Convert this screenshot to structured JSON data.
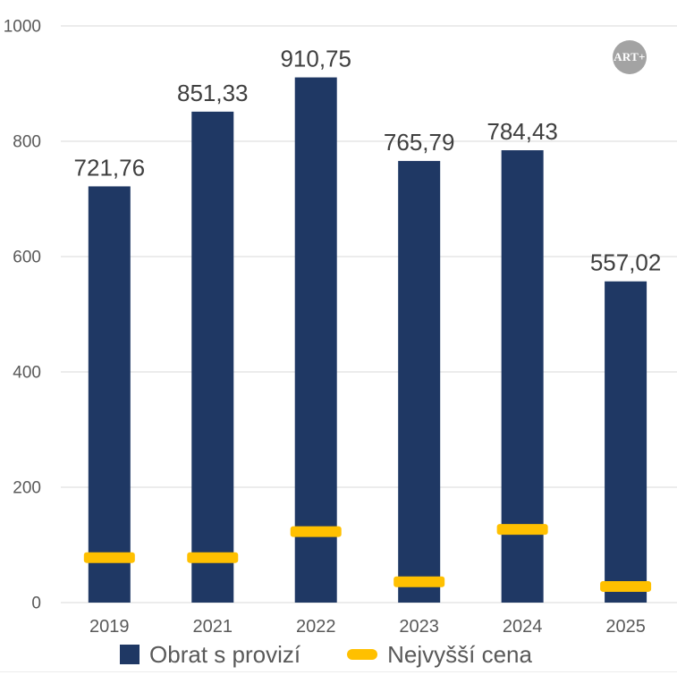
{
  "logo": {
    "text": "ART+"
  },
  "colors": {
    "bar": "#1f3864",
    "marker": "#ffc000",
    "grid": "#d9d9d9",
    "axis_label": "#595959",
    "data_label": "#3f3f3f",
    "logo_bg": "#a3a3a3",
    "logo_text": "#ffffff"
  },
  "legend": {
    "items": [
      {
        "label": "Obrat s provizí",
        "swatch": "square"
      },
      {
        "label": "Nejvyšší cena",
        "swatch": "dash"
      }
    ]
  },
  "chart_data": {
    "type": "bar",
    "categories": [
      "2019",
      "2021",
      "2022",
      "2023",
      "2024",
      "2025"
    ],
    "series": [
      {
        "name": "Obrat s provizí",
        "type": "bar",
        "color": "#1f3864",
        "values": [
          721.76,
          851.33,
          910.75,
          765.79,
          784.43,
          557.02
        ],
        "data_labels": [
          "721,76",
          "851,33",
          "910,75",
          "765,79",
          "784,43",
          "557,02"
        ]
      },
      {
        "name": "Nejvyšší cena",
        "type": "dash-marker",
        "color": "#ffc000",
        "values": [
          78,
          78,
          123,
          36,
          127,
          28
        ]
      }
    ],
    "ylim": [
      0,
      1000
    ],
    "yticks": [
      0,
      200,
      400,
      600,
      800,
      1000
    ],
    "grid": "horizontal",
    "legend_position": "bottom",
    "data_label_decimal_separator": ","
  }
}
